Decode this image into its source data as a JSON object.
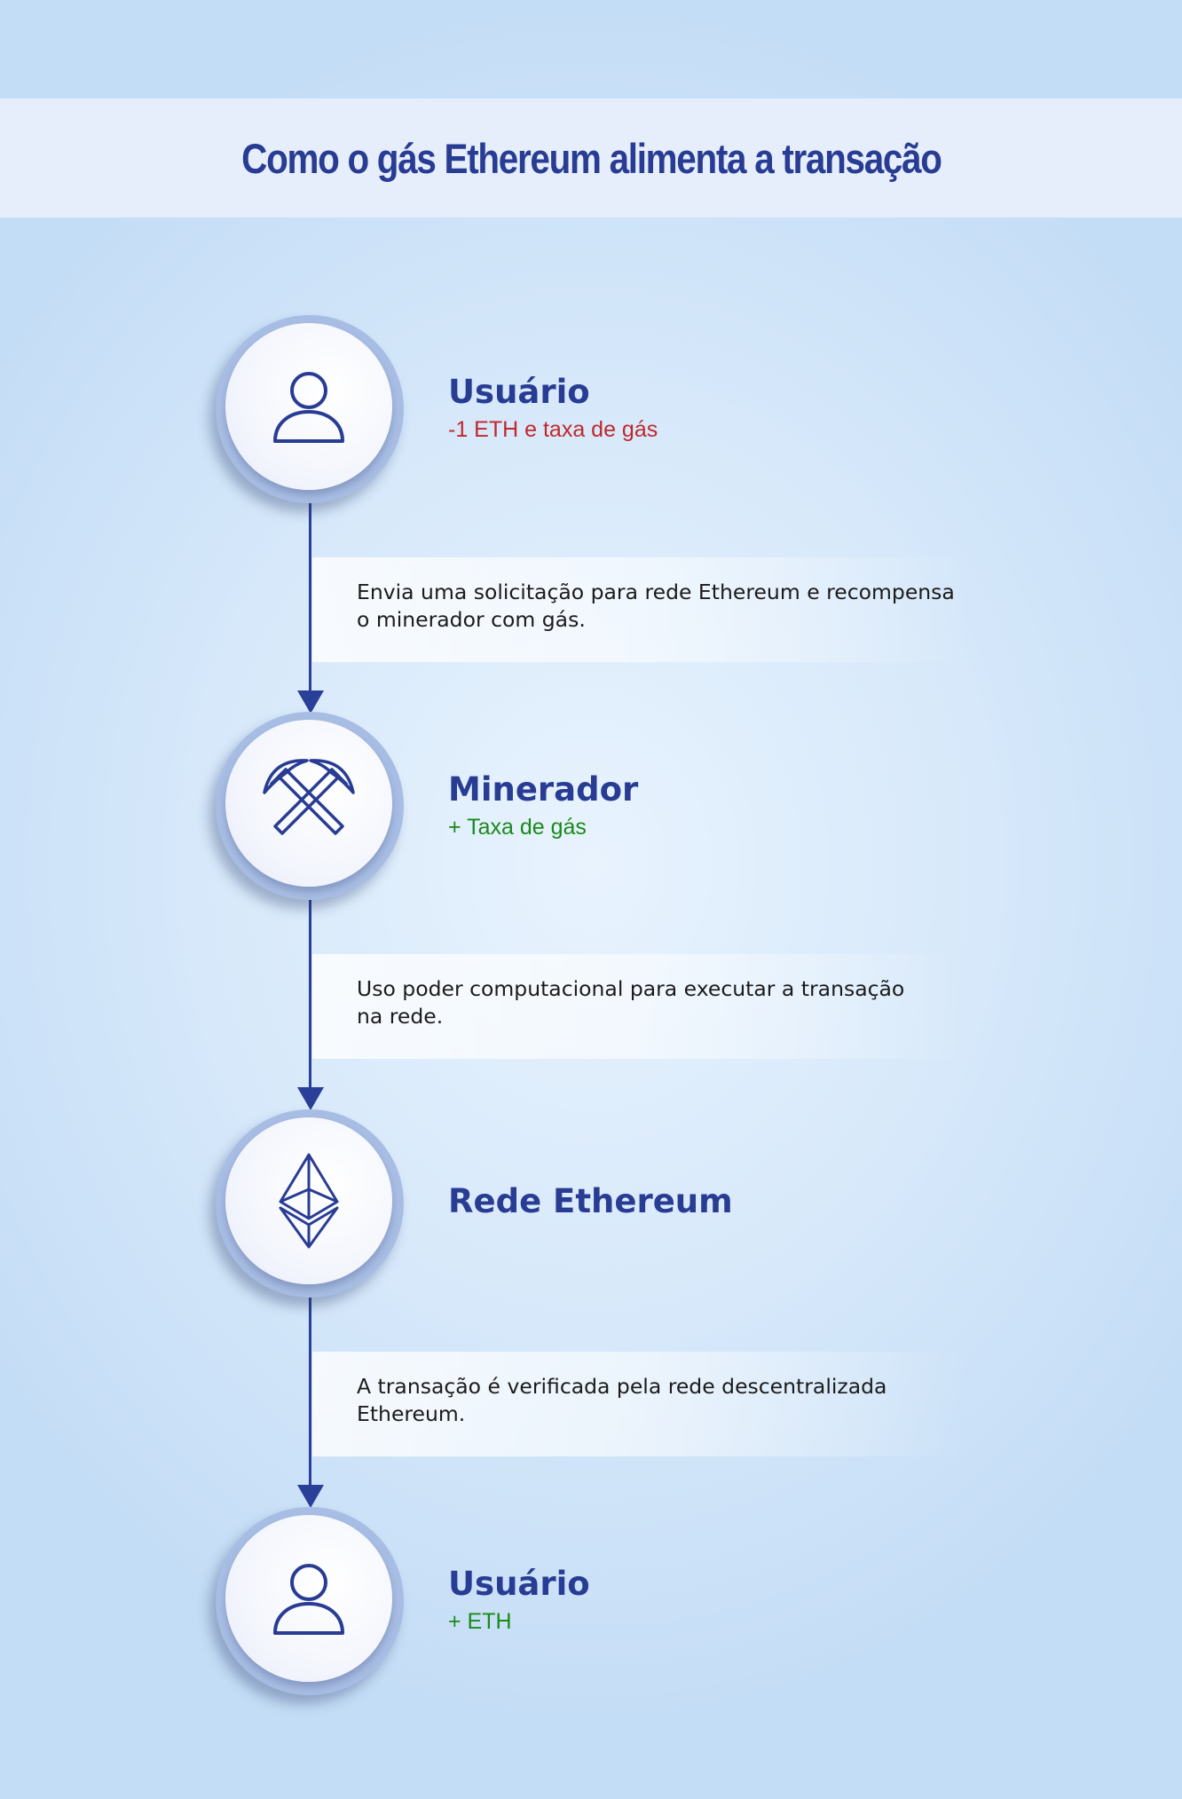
{
  "title": "Como o gás Ethereum alimenta a transação",
  "colors": {
    "primary": "#283c93",
    "negative": "#c0282c",
    "positive": "#1a8a1a"
  },
  "steps": [
    {
      "label": "Usuário",
      "sub": "-1 ETH e taxa de gás",
      "sub_tone": "negative",
      "icon": "user-icon"
    },
    {
      "label": "Minerador",
      "sub": "+ Taxa de gás",
      "sub_tone": "positive",
      "icon": "pickaxes-icon"
    },
    {
      "label": "Rede Ethereum",
      "sub": "",
      "sub_tone": "",
      "icon": "ethereum-icon"
    },
    {
      "label": "Usuário",
      "sub": "+ ETH",
      "sub_tone": "positive",
      "icon": "user-icon"
    }
  ],
  "descriptions": [
    {
      "line1": "Envia uma solicitação para rede Ethereum e recompensa",
      "line2": "o minerador com gás."
    },
    {
      "line1": "Uso poder computacional para executar a transação",
      "line2": "na rede."
    },
    {
      "line1": "A transação é verificada pela rede descentralizada",
      "line2": "Ethereum."
    }
  ]
}
